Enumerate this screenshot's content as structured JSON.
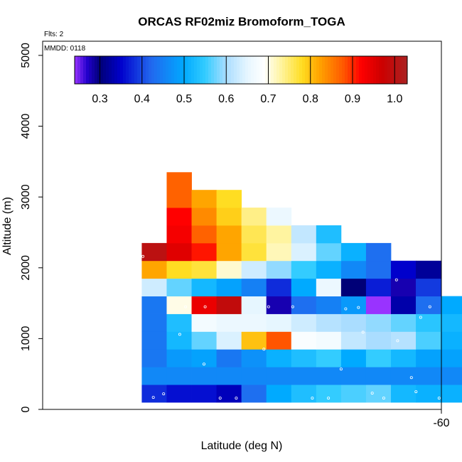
{
  "chart_data": {
    "type": "heatmap",
    "title": "ORCAS RF02miz Bromoform_TOGA",
    "xlabel": "Latitude (deg N)",
    "ylabel": "Altitude (m)",
    "annotations": {
      "flights": "Flts: 2",
      "mmdd": "MMDD: 0118"
    },
    "x_ticks": [
      {
        "value": -60,
        "label": "-60"
      }
    ],
    "y_ticks": [
      {
        "value": 0,
        "label": "0"
      },
      {
        "value": 1000,
        "label": "1000"
      },
      {
        "value": 2000,
        "label": "2000"
      },
      {
        "value": 3000,
        "label": "3000"
      },
      {
        "value": 4000,
        "label": "4000"
      },
      {
        "value": 5000,
        "label": "5000"
      }
    ],
    "xlim": [
      -63.46,
      -60
    ],
    "ylim": [
      0,
      5200
    ],
    "grid": false,
    "colorbar": {
      "range": [
        0.24,
        1.03
      ],
      "ticks": [
        {
          "value": 0.3,
          "label": "0.3"
        },
        {
          "value": 0.4,
          "label": "0.4"
        },
        {
          "value": 0.5,
          "label": "0.5"
        },
        {
          "value": 0.6,
          "label": "0.6"
        },
        {
          "value": 0.7,
          "label": "0.7"
        },
        {
          "value": 0.8,
          "label": "0.8"
        },
        {
          "value": 0.9,
          "label": "0.9"
        },
        {
          "value": 1.0,
          "label": "1.0"
        }
      ],
      "stops": [
        {
          "v": 0.24,
          "c": "#9933ff"
        },
        {
          "v": 0.27,
          "c": "#2200cc"
        },
        {
          "v": 0.3,
          "c": "#000077"
        },
        {
          "v": 0.35,
          "c": "#0000cc"
        },
        {
          "v": 0.42,
          "c": "#2266ee"
        },
        {
          "v": 0.5,
          "c": "#00aaff"
        },
        {
          "v": 0.55,
          "c": "#33ccff"
        },
        {
          "v": 0.6,
          "c": "#aaddff"
        },
        {
          "v": 0.65,
          "c": "#e6f6ff"
        },
        {
          "v": 0.69,
          "c": "#ffffff"
        },
        {
          "v": 0.73,
          "c": "#fff4a0"
        },
        {
          "v": 0.78,
          "c": "#ffdd22"
        },
        {
          "v": 0.82,
          "c": "#ffa500"
        },
        {
          "v": 0.88,
          "c": "#ff5500"
        },
        {
          "v": 0.92,
          "c": "#ff0000"
        },
        {
          "v": 0.97,
          "c": "#cc0000"
        },
        {
          "v": 1.03,
          "c": "#aa2222"
        }
      ]
    },
    "grid_spec": {
      "x_start": -62.6,
      "dx": 0.2162,
      "y_start": 100,
      "dy": 250
    },
    "rows": [
      {
        "alt": "0-250 m",
        "col_start": 0,
        "values": [
          0.38,
          0.36,
          0.36,
          0.34,
          0.43,
          0.5,
          0.53,
          0.55,
          0.56,
          0.57,
          0.52,
          0.51,
          0.51
        ]
      },
      {
        "alt": "250-500 m",
        "col_start": 0,
        "values": [
          0.46,
          0.46,
          0.46,
          0.46,
          0.46,
          0.46,
          0.46,
          0.46,
          0.46,
          0.46,
          0.46,
          0.46,
          0.46,
          0.46
        ]
      },
      {
        "alt": "500-750 m",
        "col_start": 0,
        "values": [
          0.44,
          0.48,
          0.49,
          0.44,
          0.47,
          0.51,
          0.53,
          0.55,
          0.5,
          0.55,
          0.52,
          0.49,
          0.49,
          0.48
        ]
      },
      {
        "alt": "750-1000 m",
        "col_start": 0,
        "values": [
          0.44,
          0.52,
          0.57,
          0.64,
          0.8,
          0.88,
          0.68,
          0.67,
          0.62,
          0.6,
          0.61,
          0.56,
          0.51,
          0.49
        ]
      },
      {
        "alt": "1000-1250 m",
        "col_start": 0,
        "values": [
          0.44,
          0.53,
          0.67,
          0.66,
          0.66,
          0.65,
          0.63,
          0.61,
          0.6,
          0.59,
          0.57,
          0.54,
          0.52,
          0.5
        ]
      },
      {
        "alt": "1250-1500 m",
        "col_start": 0,
        "values": [
          0.44,
          0.7,
          0.94,
          0.99,
          0.65,
          0.28,
          0.43,
          0.45,
          0.48,
          0.24,
          0.33,
          0.43,
          0.5
        ]
      },
      {
        "alt": "1500-1750 m",
        "col_start": 0,
        "values": [
          0.63,
          0.57,
          0.52,
          0.49,
          0.45,
          0.38,
          0.5,
          0.66,
          0.3,
          0.37,
          0.28,
          0.39
        ]
      },
      {
        "alt": "1750-2000 m",
        "col_start": 0,
        "values": [
          0.82,
          0.78,
          0.77,
          0.71,
          0.63,
          0.59,
          0.55,
          0.51,
          0.46,
          0.43,
          0.35,
          0.32
        ]
      },
      {
        "alt": "2000-2250 m",
        "col_start": 0,
        "values": [
          1.0,
          0.95,
          0.91,
          0.82,
          0.77,
          0.72,
          0.64,
          0.57,
          0.51,
          0.43
        ]
      },
      {
        "alt": "2250-2500 m",
        "col_start": 1,
        "values": [
          0.93,
          0.87,
          0.82,
          0.76,
          0.73,
          0.62,
          0.53
        ]
      },
      {
        "alt": "2500-2750 m",
        "col_start": 1,
        "values": [
          0.92,
          0.84,
          0.79,
          0.74,
          0.66
        ]
      },
      {
        "alt": "2750-3000 m",
        "col_start": 1,
        "values": [
          0.87,
          0.82,
          0.78
        ]
      },
      {
        "alt": "3000-3250 m",
        "col_start": 1,
        "values": [
          0.87
        ]
      }
    ],
    "sample_points": [
      {
        "lat": -62.5,
        "alt": 170
      },
      {
        "lat": -62.41,
        "alt": 220
      },
      {
        "lat": -61.92,
        "alt": 160
      },
      {
        "lat": -61.78,
        "alt": 160
      },
      {
        "lat": -61.12,
        "alt": 160
      },
      {
        "lat": -60.98,
        "alt": 160
      },
      {
        "lat": -60.6,
        "alt": 230
      },
      {
        "lat": -60.5,
        "alt": 160
      },
      {
        "lat": -60.22,
        "alt": 250
      },
      {
        "lat": -60.02,
        "alt": 160
      },
      {
        "lat": -62.79,
        "alt": 440
      },
      {
        "lat": -60.26,
        "alt": 450
      },
      {
        "lat": -62.06,
        "alt": 640
      },
      {
        "lat": -60.87,
        "alt": 570
      },
      {
        "lat": -61.54,
        "alt": 850
      },
      {
        "lat": -60.38,
        "alt": 970
      },
      {
        "lat": -60.68,
        "alt": 1090
      },
      {
        "lat": -62.27,
        "alt": 1060
      },
      {
        "lat": -62.85,
        "alt": 1300
      },
      {
        "lat": -62.22,
        "alt": 1450
      },
      {
        "lat": -62.05,
        "alt": 1450
      },
      {
        "lat": -61.5,
        "alt": 1450
      },
      {
        "lat": -61.29,
        "alt": 1450
      },
      {
        "lat": -60.83,
        "alt": 1420
      },
      {
        "lat": -60.72,
        "alt": 1440
      },
      {
        "lat": -60.18,
        "alt": 1300
      },
      {
        "lat": -60.1,
        "alt": 1450
      },
      {
        "lat": -60.39,
        "alt": 1830
      },
      {
        "lat": -62.59,
        "alt": 2160
      },
      {
        "lat": -62.44,
        "alt": 3030
      }
    ]
  }
}
